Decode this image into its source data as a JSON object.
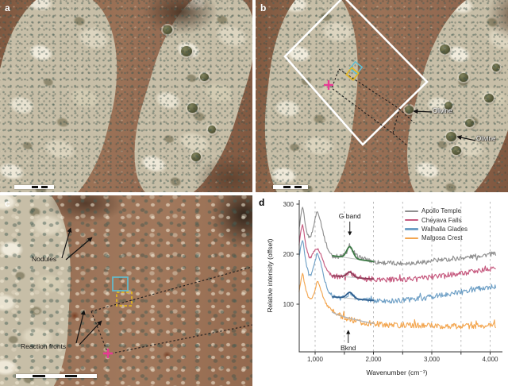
{
  "figure": {
    "panel_a": {
      "label": "a"
    },
    "panel_b": {
      "label": "b",
      "olivine_label_1": "Olivine",
      "olivine_label_2": "Olivine"
    },
    "panel_c": {
      "label": "c",
      "nodules_label": "Nodules",
      "reaction_fronts_label": "Reaction fronts"
    },
    "panel_d": {
      "label": "d"
    },
    "colors": {
      "roi_box_cyan": "#62bdd0",
      "roi_box_yellow": "#e5b71f",
      "poi_marker_pink": "#e83a94",
      "fov_outline": "#ffffff",
      "dashed_connector": "#1c1c1c"
    }
  },
  "chart_data": {
    "type": "line",
    "title": "",
    "xlabel": "Wavenumber (cm⁻¹)",
    "ylabel": "Relative intensity (offset)",
    "xlim": [
      700,
      4200
    ],
    "ylim": [
      0,
      310
    ],
    "xticks": [
      1000,
      2000,
      3000,
      4000
    ],
    "xtick_labels": [
      "1,000",
      "2,000",
      "3,000",
      "4,000"
    ],
    "yticks": [
      100,
      200,
      300
    ],
    "ytick_labels": [
      "100",
      "200",
      "300"
    ],
    "gridlines_x": [
      1000,
      1500,
      2000,
      2500,
      3000,
      3500,
      4000
    ],
    "grid_style": "dashed",
    "legend_position": "top-right",
    "series": [
      {
        "name": "Apollo Temple",
        "color": "#8f8f8f",
        "noise": 4.5,
        "anchors": [
          [
            725,
            250
          ],
          [
            750,
            272
          ],
          [
            782,
            295
          ],
          [
            805,
            282
          ],
          [
            830,
            258
          ],
          [
            860,
            242
          ],
          [
            895,
            234
          ],
          [
            925,
            236
          ],
          [
            955,
            246
          ],
          [
            985,
            262
          ],
          [
            1010,
            276
          ],
          [
            1030,
            286
          ],
          [
            1060,
            280
          ],
          [
            1090,
            268
          ],
          [
            1120,
            252
          ],
          [
            1160,
            232
          ],
          [
            1210,
            212
          ],
          [
            1260,
            201
          ],
          [
            1310,
            197
          ],
          [
            1400,
            195
          ],
          [
            1470,
            197
          ],
          [
            1530,
            202
          ],
          [
            1570,
            210
          ],
          [
            1595,
            220
          ],
          [
            1625,
            210
          ],
          [
            1665,
            200
          ],
          [
            1730,
            195
          ],
          [
            1810,
            192
          ],
          [
            1910,
            188
          ],
          [
            2010,
            185
          ],
          [
            2150,
            183
          ],
          [
            2350,
            182
          ],
          [
            2550,
            182
          ],
          [
            2750,
            183
          ],
          [
            2950,
            185
          ],
          [
            3150,
            188
          ],
          [
            3350,
            190
          ],
          [
            3550,
            193
          ],
          [
            3750,
            196
          ],
          [
            3950,
            199
          ],
          [
            4100,
            201
          ]
        ]
      },
      {
        "name": "Cheyava Falls",
        "color": "#c65a7f",
        "noise": 5,
        "anchors": [
          [
            725,
            220
          ],
          [
            750,
            241
          ],
          [
            782,
            259
          ],
          [
            805,
            246
          ],
          [
            830,
            225
          ],
          [
            860,
            207
          ],
          [
            895,
            195
          ],
          [
            925,
            194
          ],
          [
            955,
            199
          ],
          [
            985,
            206
          ],
          [
            1010,
            210
          ],
          [
            1030,
            212
          ],
          [
            1060,
            208
          ],
          [
            1090,
            201
          ],
          [
            1120,
            192
          ],
          [
            1160,
            180
          ],
          [
            1210,
            167
          ],
          [
            1260,
            160
          ],
          [
            1310,
            157
          ],
          [
            1400,
            155
          ],
          [
            1470,
            156
          ],
          [
            1530,
            159
          ],
          [
            1570,
            163
          ],
          [
            1595,
            167
          ],
          [
            1625,
            162
          ],
          [
            1665,
            157
          ],
          [
            1730,
            154
          ],
          [
            1810,
            152
          ],
          [
            1910,
            151
          ],
          [
            2010,
            150
          ],
          [
            2200,
            149
          ],
          [
            2400,
            149
          ],
          [
            2600,
            150
          ],
          [
            2800,
            152
          ],
          [
            3000,
            154
          ],
          [
            3200,
            157
          ],
          [
            3400,
            160
          ],
          [
            3600,
            163
          ],
          [
            3800,
            167
          ],
          [
            4100,
            171
          ]
        ]
      },
      {
        "name": "Walhalla Glades",
        "color": "#6fa0c6",
        "noise": 5,
        "anchors": [
          [
            725,
            194
          ],
          [
            750,
            212
          ],
          [
            782,
            231
          ],
          [
            805,
            216
          ],
          [
            830,
            193
          ],
          [
            860,
            173
          ],
          [
            895,
            159
          ],
          [
            925,
            158
          ],
          [
            955,
            166
          ],
          [
            985,
            178
          ],
          [
            1010,
            190
          ],
          [
            1030,
            201
          ],
          [
            1060,
            196
          ],
          [
            1090,
            185
          ],
          [
            1120,
            170
          ],
          [
            1160,
            150
          ],
          [
            1210,
            130
          ],
          [
            1260,
            119
          ],
          [
            1310,
            115
          ],
          [
            1400,
            112
          ],
          [
            1470,
            113
          ],
          [
            1530,
            116
          ],
          [
            1570,
            121
          ],
          [
            1595,
            126
          ],
          [
            1625,
            120
          ],
          [
            1665,
            114
          ],
          [
            1730,
            111
          ],
          [
            1810,
            109
          ],
          [
            1910,
            108
          ],
          [
            2010,
            107
          ],
          [
            2200,
            106
          ],
          [
            2400,
            107
          ],
          [
            2600,
            109
          ],
          [
            2800,
            111
          ],
          [
            3000,
            115
          ],
          [
            3200,
            119
          ],
          [
            3400,
            123
          ],
          [
            3600,
            127
          ],
          [
            3800,
            131
          ],
          [
            4100,
            136
          ]
        ]
      },
      {
        "name": "Malgosa Crest",
        "color": "#f3a650",
        "noise": 5.5,
        "anchors": [
          [
            725,
            126
          ],
          [
            750,
            144
          ],
          [
            782,
            162
          ],
          [
            805,
            151
          ],
          [
            830,
            134
          ],
          [
            860,
            121
          ],
          [
            895,
            111
          ],
          [
            925,
            109
          ],
          [
            955,
            114
          ],
          [
            985,
            124
          ],
          [
            1010,
            135
          ],
          [
            1030,
            148
          ],
          [
            1060,
            142
          ],
          [
            1090,
            131
          ],
          [
            1120,
            120
          ],
          [
            1160,
            108
          ],
          [
            1210,
            97
          ],
          [
            1260,
            90
          ],
          [
            1310,
            85
          ],
          [
            1400,
            79
          ],
          [
            1470,
            75
          ],
          [
            1530,
            72
          ],
          [
            1595,
            70
          ],
          [
            1665,
            67
          ],
          [
            1730,
            65
          ],
          [
            1810,
            63
          ],
          [
            1910,
            62
          ],
          [
            2010,
            61
          ],
          [
            2200,
            59
          ],
          [
            2400,
            58
          ],
          [
            2600,
            58
          ],
          [
            2800,
            57
          ],
          [
            3000,
            57
          ],
          [
            3200,
            56
          ],
          [
            3400,
            56
          ],
          [
            3600,
            56
          ],
          [
            3800,
            57
          ],
          [
            4100,
            57
          ]
        ]
      }
    ],
    "fits": [
      {
        "series": "Apollo Temple",
        "color": "#3c7a45",
        "x_range": [
          1290,
          2010
        ],
        "baseline": [
          197,
          185
        ],
        "peak_center": 1595,
        "peak_height": 23,
        "peak_sigma": 55,
        "ease": 1
      },
      {
        "series": "Cheyava Falls",
        "color": "#8c3a57",
        "x_range": [
          1290,
          2010
        ],
        "baseline": [
          157,
          150
        ],
        "peak_center": 1595,
        "peak_height": 10,
        "peak_sigma": 55,
        "ease": 1
      },
      {
        "series": "Walhalla Glades",
        "color": "#2f5e8e",
        "x_range": [
          1290,
          2010
        ],
        "baseline": [
          115,
          107
        ],
        "peak_center": 1595,
        "peak_height": 12,
        "peak_sigma": 55,
        "ease": 1
      },
      {
        "series": "Malgosa Crest",
        "color": "#b3b3b3",
        "x_range": [
          1290,
          2010
        ],
        "baseline": [
          85,
          61
        ],
        "peak_center": 1595,
        "peak_height": 0,
        "peak_sigma": 55,
        "ease": 0.7
      }
    ],
    "annotations": [
      {
        "text": "G band",
        "x_wavenumber": 1595,
        "direction": "down",
        "dx": 0
      },
      {
        "text": "Bknd",
        "x_wavenumber": 1595,
        "direction": "up",
        "dx": -2
      }
    ]
  }
}
